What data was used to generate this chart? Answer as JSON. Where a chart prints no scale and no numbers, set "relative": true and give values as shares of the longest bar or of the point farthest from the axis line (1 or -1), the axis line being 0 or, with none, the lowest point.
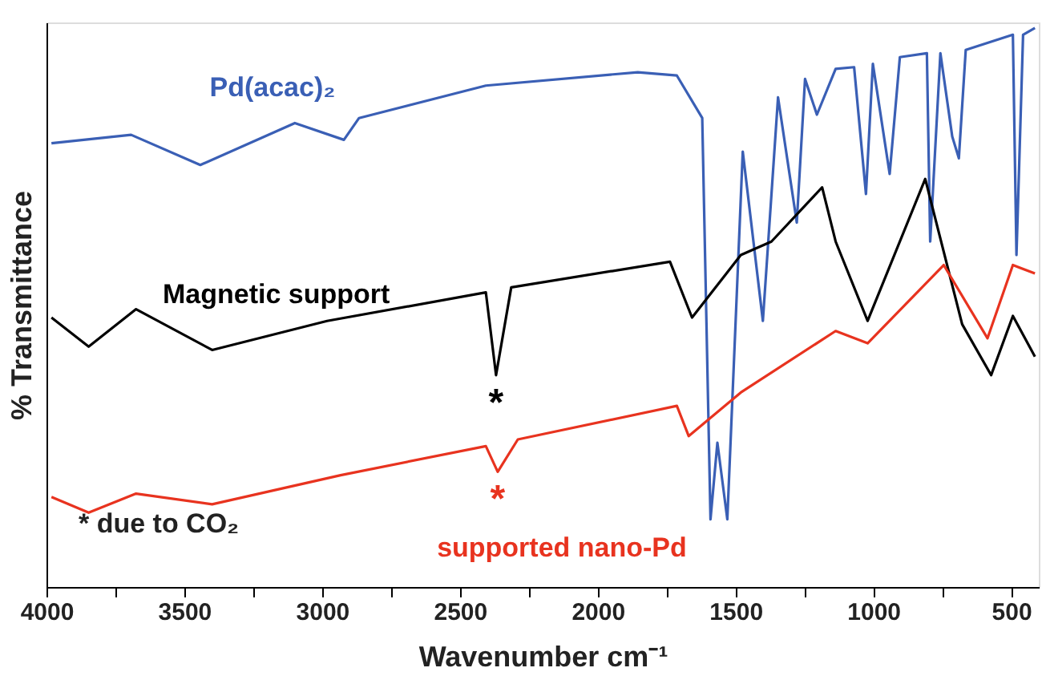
{
  "chart_data": {
    "type": "line",
    "relative": true,
    "xlabel": "Wavenumber  cm⁻¹",
    "ylabel": "% Transmittance",
    "xlim": [
      4000,
      400
    ],
    "xticks": [
      4000,
      {
        "value": 3750,
        "label": null
      },
      3500,
      {
        "value": 3250,
        "label": null
      },
      3000,
      {
        "value": 2750,
        "label": null
      },
      2500,
      {
        "value": 2250,
        "label": null
      },
      2000,
      {
        "value": 1750,
        "label": null
      },
      1500,
      {
        "value": 1250,
        "label": null
      },
      1000,
      {
        "value": 750,
        "label": null
      },
      500
    ],
    "grid": false,
    "legend": false,
    "line_style": "solid",
    "marker": "none",
    "series": [
      {
        "name": "Pd(acac)₂",
        "color": "#3a5fb5",
        "x": [
          3982,
          3693,
          3442,
          3099,
          2921,
          2866,
          2406,
          1855,
          1713,
          1621,
          1591,
          1566,
          1530,
          1474,
          1401,
          1346,
          1278,
          1248,
          1205,
          1137,
          1070,
          1027,
          1002,
          941,
          904,
          806,
          794,
          757,
          714,
          690,
          665,
          494,
          481,
          457,
          414
        ],
        "values": [
          0.794,
          0.809,
          0.755,
          0.83,
          0.8,
          0.839,
          0.897,
          0.921,
          0.915,
          0.839,
          0.121,
          0.258,
          0.121,
          0.779,
          0.476,
          0.876,
          0.652,
          0.909,
          0.845,
          0.927,
          0.93,
          0.703,
          0.936,
          0.739,
          0.948,
          0.955,
          0.618,
          0.955,
          0.806,
          0.767,
          0.961,
          0.988,
          0.594,
          0.988,
          1.0
        ]
      },
      {
        "name": "Magnetic support",
        "color": "#000000",
        "x": [
          3982,
          3847,
          3675,
          3399,
          2982,
          2406,
          2369,
          2314,
          1738,
          1658,
          1481,
          1370,
          1186,
          1137,
          1021,
          812,
          678,
          573,
          494,
          414
        ],
        "values": [
          0.482,
          0.43,
          0.497,
          0.424,
          0.476,
          0.527,
          0.379,
          0.536,
          0.582,
          0.482,
          0.594,
          0.618,
          0.715,
          0.618,
          0.476,
          0.73,
          0.47,
          0.379,
          0.485,
          0.412
        ]
      },
      {
        "name": "supported nano-Pd",
        "color": "#e8331f",
        "x": [
          3982,
          3847,
          3675,
          3399,
          2933,
          2406,
          2363,
          2290,
          1713,
          1670,
          1481,
          1137,
          1021,
          745,
          586,
          494,
          414
        ],
        "values": [
          0.161,
          0.133,
          0.167,
          0.148,
          0.2,
          0.252,
          0.206,
          0.264,
          0.324,
          0.27,
          0.348,
          0.458,
          0.436,
          0.576,
          0.445,
          0.576,
          0.561
        ]
      }
    ],
    "annotations": [
      {
        "text": "*",
        "x": 2369,
        "y": 0.379
      },
      {
        "text": "*",
        "x": 2363,
        "y": 0.206
      },
      "* due to CO₂"
    ]
  }
}
